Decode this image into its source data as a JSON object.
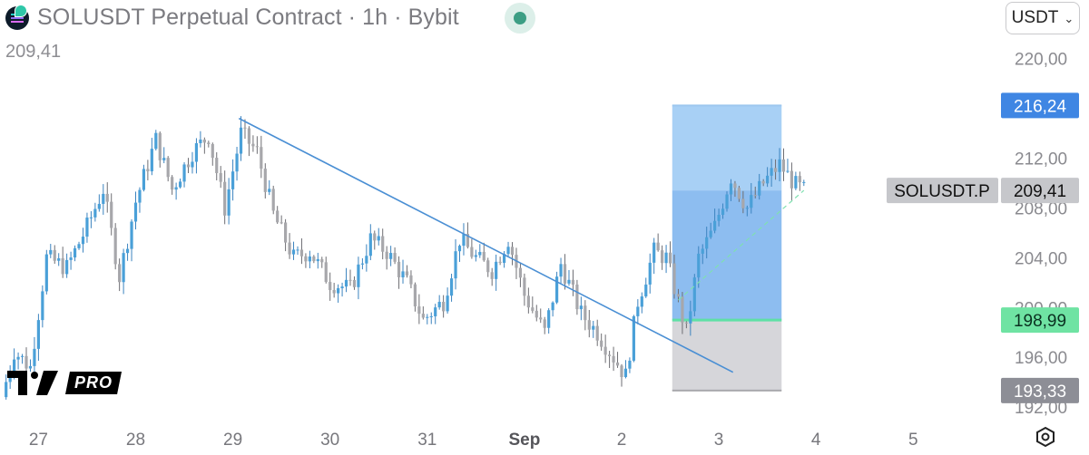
{
  "header": {
    "title": "SOLUSDT Perpetual Contract · 1h · Bybit",
    "last_price": "209,41",
    "currency": "USDT"
  },
  "logo": {
    "pro_label": "PRO"
  },
  "colors": {
    "candle_up": "#4aa0d8",
    "candle_down": "#a7a7ab",
    "trendline": "#4a8fd4",
    "target_zone": "#a8d0f5",
    "profit_zone": "#8dbdf0",
    "stop_zone": "#d6d6da",
    "entry_line": "#5fe0a6",
    "label_target": "#3f86e3",
    "label_entry": "#6fe3a3",
    "label_stop": "#8d8e96",
    "label_current": "#c6c7cb"
  },
  "chart_data": {
    "type": "candlestick",
    "x_tick_labels": [
      "27",
      "28",
      "29",
      "30",
      "31",
      "Sep",
      "2",
      "3",
      "4",
      "5"
    ],
    "x_tick_hours": [
      0,
      24,
      48,
      72,
      96,
      120,
      144,
      168,
      192,
      216
    ],
    "y_tick_labels": [
      "220,00",
      "216,00",
      "212,00",
      "208,00",
      "204,00",
      "200,00",
      "196,00",
      "192,00"
    ],
    "y_tick_values": [
      220,
      216,
      212,
      208,
      204,
      200,
      196,
      192
    ],
    "ylim": [
      191.5,
      221.8
    ],
    "xlim_hours": [
      -9.5,
      237
    ],
    "anchors_hours": [
      -9,
      -6,
      -2,
      2,
      7,
      12,
      16,
      20,
      24,
      29,
      33,
      38,
      42,
      46,
      50,
      54,
      58,
      63,
      67,
      72,
      77,
      82,
      86,
      91,
      95,
      100,
      104,
      108,
      112,
      116,
      120,
      125,
      129,
      134,
      138,
      142,
      145,
      148,
      152,
      155,
      160,
      163,
      167,
      171,
      175,
      179,
      183,
      187,
      189
    ],
    "anchors_close": [
      192.8,
      196.5,
      195.2,
      204.0,
      203.2,
      206.5,
      209.5,
      202.5,
      208.5,
      213.5,
      209.5,
      212.5,
      213.8,
      208.0,
      214.0,
      212.5,
      207.5,
      204.0,
      204.5,
      202.0,
      201.5,
      205.5,
      204.5,
      202.0,
      199.0,
      200.5,
      205.5,
      204.0,
      203.0,
      205.5,
      201.0,
      198.0,
      203.5,
      199.5,
      198.0,
      196.0,
      194.5,
      200.5,
      204.5,
      204.0,
      198.0,
      204.0,
      206.5,
      210.5,
      208.0,
      210.0,
      211.5,
      209.8,
      209.41
    ],
    "current_price": 209.41,
    "trendline": {
      "x1_hours": 49.5,
      "y1": 215.2,
      "x2_hours": 171.5,
      "y2": 194.8
    },
    "position": {
      "x_start_hours": 156.5,
      "x_end_hours": 183.5,
      "target": 216.24,
      "entry": 198.99,
      "stop": 193.33
    },
    "projection": {
      "x1_hours": 158,
      "y1": 200.6,
      "x2_hours": 189,
      "y2": 209.41
    },
    "price_labels": {
      "target": "216,24",
      "current": "209,41",
      "current_symbol": "SOLUSDT.P",
      "entry": "198,99",
      "stop": "193,33"
    }
  }
}
